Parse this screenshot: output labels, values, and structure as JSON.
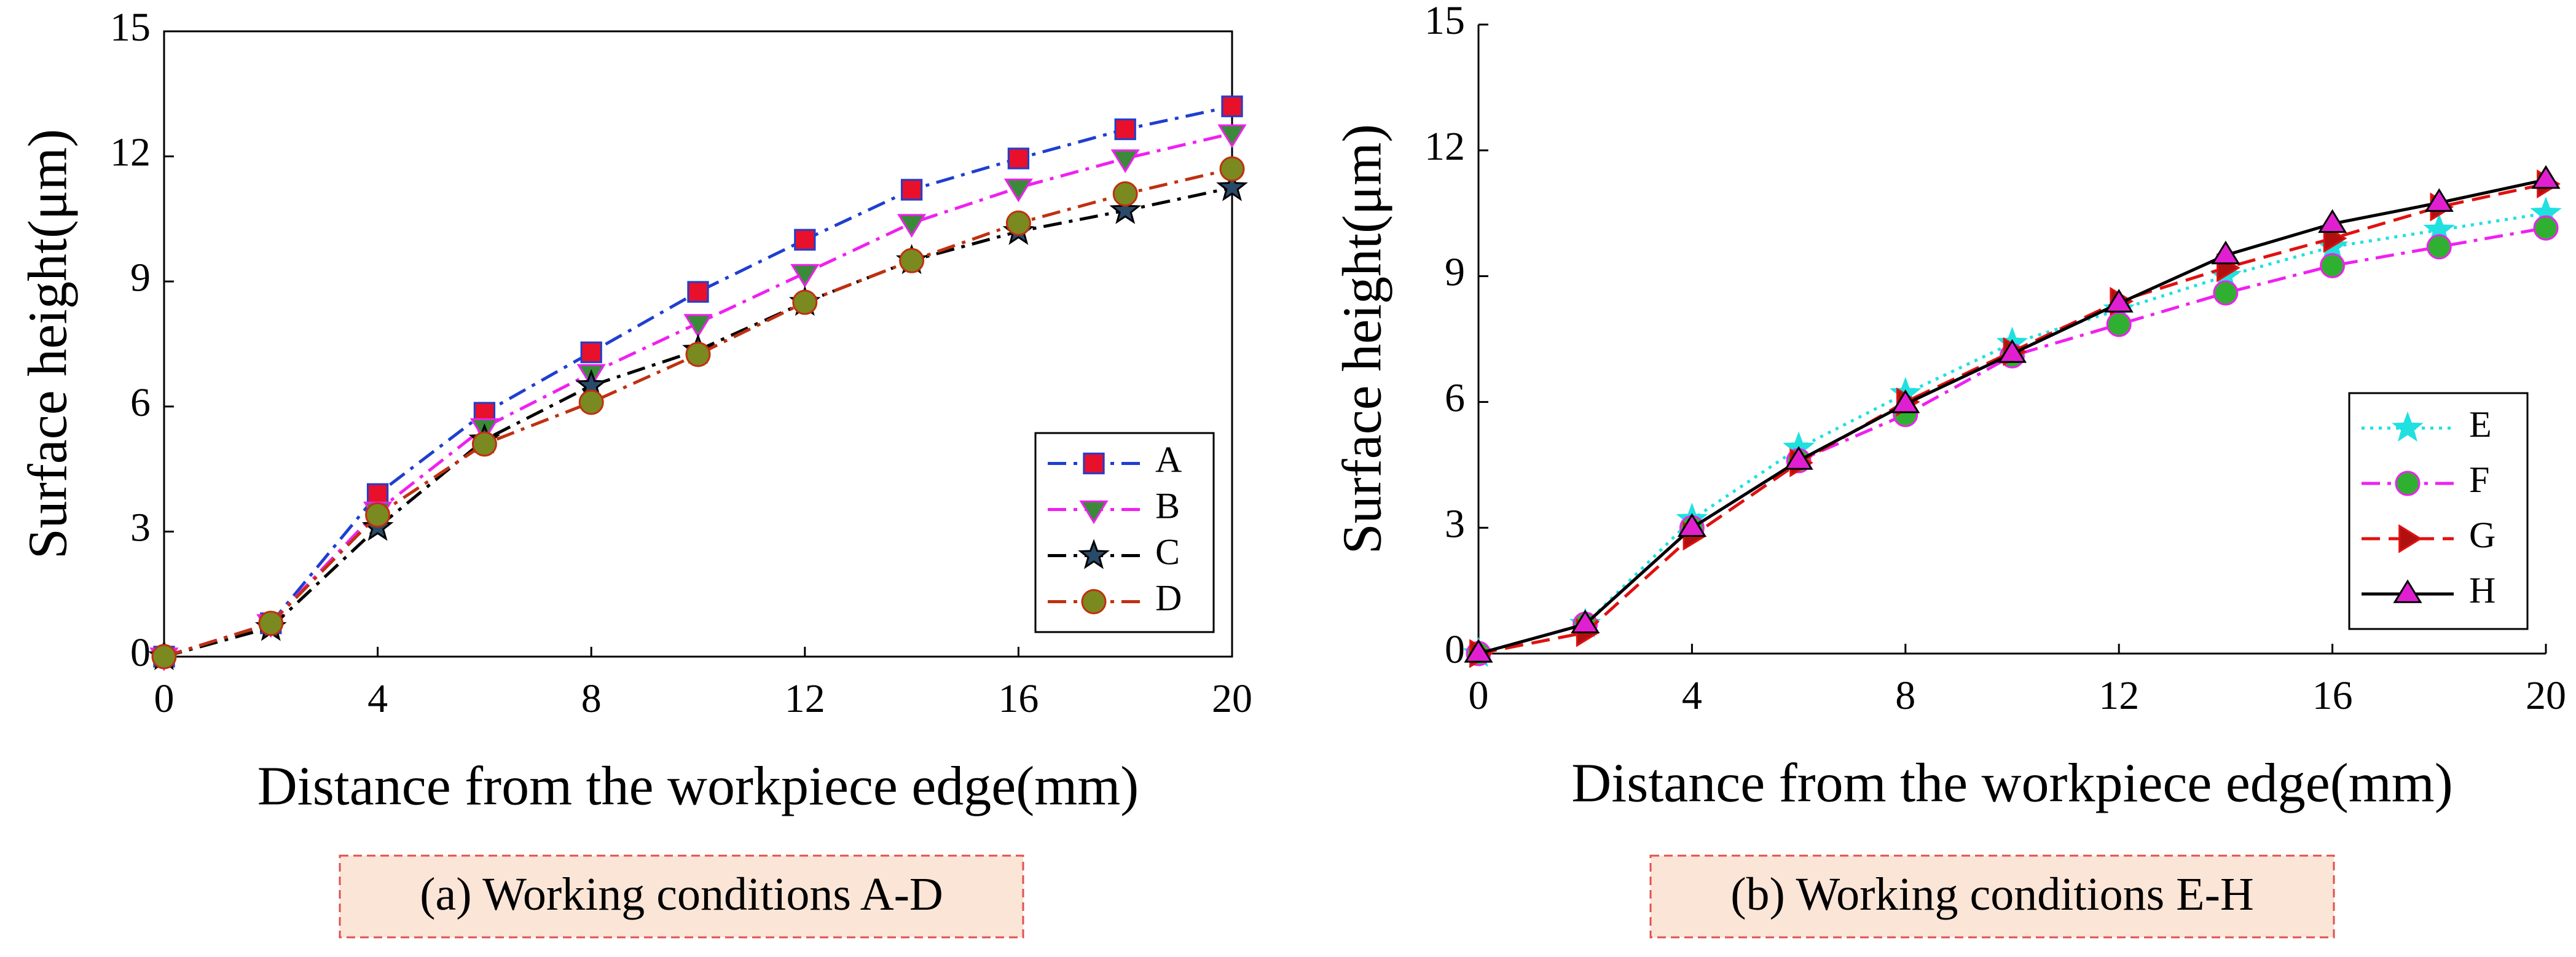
{
  "chart_data": [
    {
      "type": "line",
      "caption": "(a) Working conditions A-D",
      "xlabel": "Distance from the workpiece edge(mm)",
      "ylabel": "Surface height(μm)",
      "x": [
        0,
        2,
        4,
        6,
        8,
        10,
        12,
        14,
        16,
        18,
        20
      ],
      "xlim": [
        0,
        20
      ],
      "xticks": [
        0,
        4,
        8,
        12,
        16,
        20
      ],
      "ylim": [
        0,
        15
      ],
      "yticks": [
        0,
        3,
        6,
        9,
        12,
        15
      ],
      "box": true,
      "legend": "lower right",
      "series": [
        {
          "name": "A",
          "color": "#1f3fd0",
          "dash": "dashdot",
          "marker": "square",
          "marker_fill": "#e8102a",
          "values": [
            0,
            0.8,
            3.9,
            5.85,
            7.3,
            8.75,
            10.0,
            11.2,
            11.95,
            12.65,
            13.2
          ]
        },
        {
          "name": "B",
          "color": "#f020f0",
          "dash": "dashdot",
          "marker": "triangle-down",
          "marker_fill": "#3a8a3a",
          "values": [
            0,
            0.8,
            3.5,
            5.5,
            6.8,
            8.0,
            9.2,
            10.4,
            11.25,
            11.95,
            12.55
          ]
        },
        {
          "name": "C",
          "color": "#000000",
          "dash": "dashdot",
          "marker": "star",
          "marker_fill": "#2a4a6a",
          "values": [
            0,
            0.7,
            3.1,
            5.2,
            6.5,
            7.35,
            8.5,
            9.5,
            10.2,
            10.7,
            11.25
          ]
        },
        {
          "name": "D",
          "color": "#c03010",
          "dash": "dashdot",
          "marker": "circle",
          "marker_fill": "#7a8a20",
          "values": [
            0,
            0.8,
            3.4,
            5.1,
            6.1,
            7.25,
            8.5,
            9.5,
            10.4,
            11.1,
            11.7
          ]
        }
      ]
    },
    {
      "type": "line",
      "caption": "(b) Working conditions E-H",
      "xlabel": "Distance from the workpiece edge(mm)",
      "ylabel": "Surface height(μm)",
      "x": [
        0,
        2,
        4,
        6,
        8,
        10,
        12,
        14,
        16,
        18,
        20
      ],
      "xlim": [
        0,
        20
      ],
      "xticks": [
        0,
        4,
        8,
        12,
        16,
        20
      ],
      "ylim": [
        0,
        15
      ],
      "yticks": [
        0,
        3,
        6,
        9,
        12,
        15
      ],
      "box": false,
      "legend": "lower right",
      "series": [
        {
          "name": "E",
          "color": "#20e0e0",
          "dash": "dotted",
          "marker": "star",
          "marker_fill": "#20e0e0",
          "values": [
            0,
            0.7,
            3.2,
            4.9,
            6.2,
            7.4,
            8.2,
            9.0,
            9.7,
            10.1,
            10.5
          ]
        },
        {
          "name": "F",
          "color": "#f020f0",
          "dash": "dashdot",
          "marker": "circle",
          "marker_fill": "#30b030",
          "values": [
            0,
            0.7,
            3.0,
            4.6,
            5.7,
            7.1,
            7.85,
            8.6,
            9.25,
            9.7,
            10.15
          ]
        },
        {
          "name": "G",
          "color": "#e01010",
          "dash": "dashed",
          "marker": "triangle-right",
          "marker_fill": "#b01010",
          "values": [
            0,
            0.5,
            2.8,
            4.55,
            6.0,
            7.2,
            8.4,
            9.2,
            9.9,
            10.65,
            11.2
          ]
        },
        {
          "name": "H",
          "color": "#000000",
          "dash": "solid",
          "marker": "triangle-up",
          "marker_fill": "#e020d0",
          "values": [
            0,
            0.7,
            3.0,
            4.6,
            5.95,
            7.15,
            8.35,
            9.5,
            10.25,
            10.75,
            11.3
          ]
        }
      ]
    }
  ]
}
